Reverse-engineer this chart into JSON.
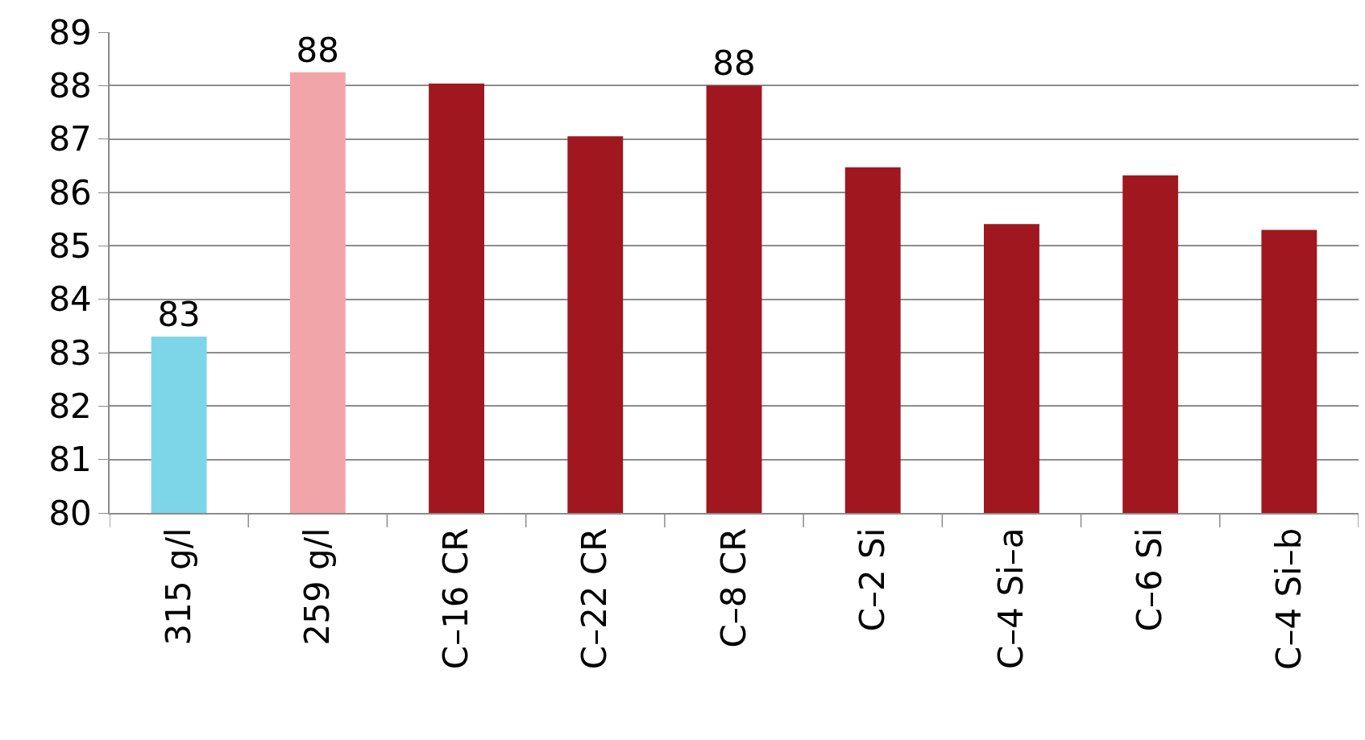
{
  "chart_data": {
    "type": "bar",
    "categories": [
      "315 g/l",
      "259 g/l",
      "C–16 CR",
      "C–22 CR",
      "C–8 CR",
      "C–2 Si",
      "C–4 Si–a",
      "C–6 Si",
      "C–4 Si–b"
    ],
    "values": [
      83.3,
      88.25,
      88.04,
      87.05,
      88.0,
      86.47,
      85.41,
      86.32,
      85.3
    ],
    "colors": [
      "#7dd6e8",
      "#f2a5a8",
      "#a0171f",
      "#a0171f",
      "#a0171f",
      "#a0171f",
      "#a0171f",
      "#a0171f",
      "#a0171f"
    ],
    "value_labels": [
      "83",
      "88",
      null,
      null,
      "88",
      null,
      null,
      null,
      null
    ],
    "ylim": [
      80,
      89
    ],
    "yticks": [
      80,
      81,
      82,
      83,
      84,
      85,
      86,
      87,
      88,
      89
    ],
    "grid": "y"
  }
}
